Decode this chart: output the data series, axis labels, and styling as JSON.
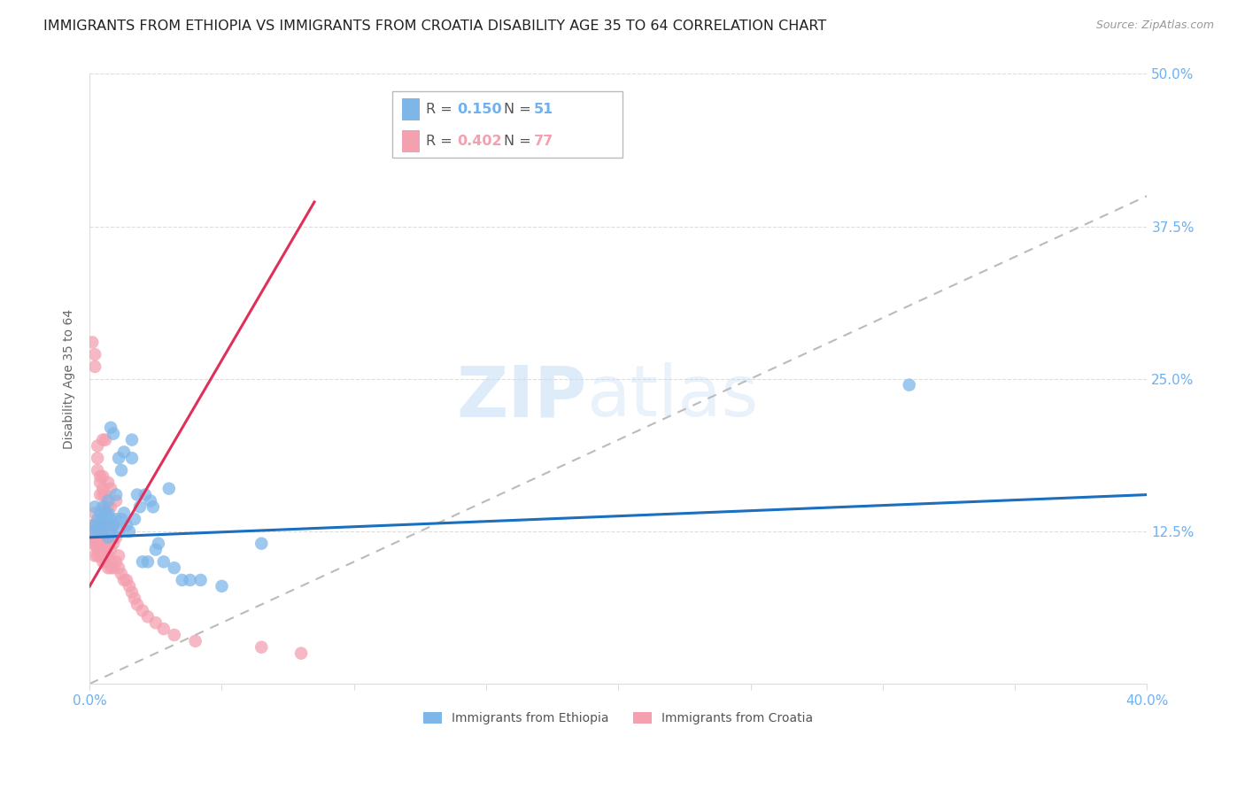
{
  "title": "IMMIGRANTS FROM ETHIOPIA VS IMMIGRANTS FROM CROATIA DISABILITY AGE 35 TO 64 CORRELATION CHART",
  "source": "Source: ZipAtlas.com",
  "ylabel": "Disability Age 35 to 64",
  "yticks": [
    0.0,
    0.125,
    0.25,
    0.375,
    0.5
  ],
  "ytick_labels": [
    "",
    "12.5%",
    "25.0%",
    "37.5%",
    "50.0%"
  ],
  "xticks": [
    0.0,
    0.05,
    0.1,
    0.15,
    0.2,
    0.25,
    0.3,
    0.35,
    0.4
  ],
  "xlim": [
    0.0,
    0.4
  ],
  "ylim": [
    0.0,
    0.5
  ],
  "watermark_zip": "ZIP",
  "watermark_atlas": "atlas",
  "legend_r1_val": "0.150",
  "legend_n1_val": "51",
  "legend_r2_val": "0.402",
  "legend_n2_val": "77",
  "series1_label": "Immigrants from Ethiopia",
  "series2_label": "Immigrants from Croatia",
  "series1_color": "#7EB6E8",
  "series2_color": "#F4A0B0",
  "trend1_color": "#1A6FBF",
  "trend2_color": "#E0305A",
  "diag_color": "#BBBBBB",
  "title_color": "#222222",
  "axis_label_color": "#666666",
  "tick_color": "#6EB0F0",
  "grid_color": "#DDDDDD",
  "title_fontsize": 11.5,
  "source_fontsize": 9,
  "axis_label_fontsize": 10,
  "tick_fontsize": 11,
  "series1_x": [
    0.001,
    0.002,
    0.002,
    0.003,
    0.003,
    0.004,
    0.004,
    0.005,
    0.005,
    0.005,
    0.006,
    0.006,
    0.007,
    0.007,
    0.007,
    0.008,
    0.008,
    0.008,
    0.009,
    0.009,
    0.01,
    0.01,
    0.011,
    0.011,
    0.012,
    0.012,
    0.013,
    0.013,
    0.014,
    0.015,
    0.016,
    0.016,
    0.017,
    0.018,
    0.019,
    0.02,
    0.021,
    0.022,
    0.023,
    0.024,
    0.025,
    0.026,
    0.028,
    0.03,
    0.032,
    0.035,
    0.038,
    0.042,
    0.05,
    0.065,
    0.31
  ],
  "series1_y": [
    0.125,
    0.13,
    0.145,
    0.125,
    0.135,
    0.13,
    0.14,
    0.125,
    0.135,
    0.145,
    0.13,
    0.14,
    0.12,
    0.14,
    0.15,
    0.125,
    0.135,
    0.21,
    0.13,
    0.205,
    0.135,
    0.155,
    0.125,
    0.185,
    0.135,
    0.175,
    0.14,
    0.19,
    0.13,
    0.125,
    0.185,
    0.2,
    0.135,
    0.155,
    0.145,
    0.1,
    0.155,
    0.1,
    0.15,
    0.145,
    0.11,
    0.115,
    0.1,
    0.16,
    0.095,
    0.085,
    0.085,
    0.085,
    0.08,
    0.115,
    0.245
  ],
  "series2_x": [
    0.001,
    0.001,
    0.001,
    0.001,
    0.001,
    0.002,
    0.002,
    0.002,
    0.002,
    0.002,
    0.002,
    0.002,
    0.003,
    0.003,
    0.003,
    0.003,
    0.003,
    0.003,
    0.003,
    0.003,
    0.004,
    0.004,
    0.004,
    0.004,
    0.004,
    0.004,
    0.004,
    0.005,
    0.005,
    0.005,
    0.005,
    0.005,
    0.005,
    0.005,
    0.005,
    0.006,
    0.006,
    0.006,
    0.006,
    0.006,
    0.006,
    0.006,
    0.007,
    0.007,
    0.007,
    0.007,
    0.007,
    0.007,
    0.008,
    0.008,
    0.008,
    0.008,
    0.008,
    0.008,
    0.009,
    0.009,
    0.009,
    0.01,
    0.01,
    0.01,
    0.011,
    0.011,
    0.012,
    0.013,
    0.014,
    0.015,
    0.016,
    0.017,
    0.018,
    0.02,
    0.022,
    0.025,
    0.028,
    0.032,
    0.04,
    0.065,
    0.08
  ],
  "series2_y": [
    0.115,
    0.12,
    0.125,
    0.13,
    0.28,
    0.105,
    0.115,
    0.12,
    0.13,
    0.14,
    0.26,
    0.27,
    0.105,
    0.11,
    0.115,
    0.12,
    0.125,
    0.175,
    0.185,
    0.195,
    0.105,
    0.11,
    0.115,
    0.12,
    0.155,
    0.165,
    0.17,
    0.1,
    0.11,
    0.12,
    0.13,
    0.155,
    0.16,
    0.17,
    0.2,
    0.1,
    0.11,
    0.12,
    0.13,
    0.145,
    0.155,
    0.2,
    0.095,
    0.105,
    0.115,
    0.13,
    0.145,
    0.165,
    0.095,
    0.1,
    0.11,
    0.13,
    0.145,
    0.16,
    0.095,
    0.115,
    0.13,
    0.1,
    0.12,
    0.15,
    0.095,
    0.105,
    0.09,
    0.085,
    0.085,
    0.08,
    0.075,
    0.07,
    0.065,
    0.06,
    0.055,
    0.05,
    0.045,
    0.04,
    0.035,
    0.03,
    0.025
  ],
  "trend1_x_start": 0.0,
  "trend1_x_end": 0.4,
  "trend2_x_start": 0.0,
  "trend2_x_end": 0.085,
  "trend1_y_start": 0.12,
  "trend1_y_end": 0.155,
  "trend2_y_start": 0.08,
  "trend2_y_end": 0.395
}
